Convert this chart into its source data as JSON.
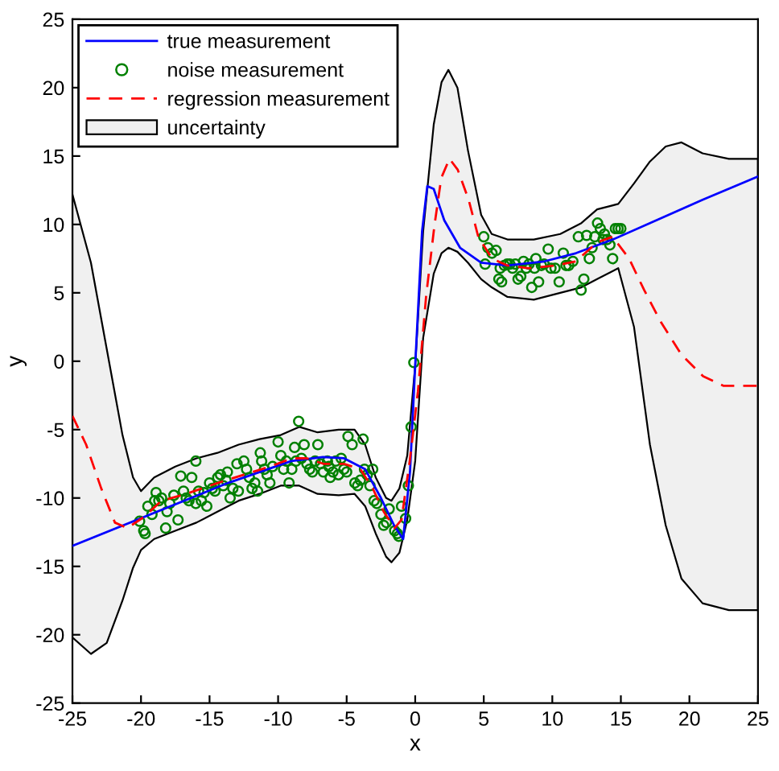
{
  "chart_data": {
    "type": "line",
    "xlabel": "x",
    "ylabel": "y",
    "xlim": [
      -25,
      25
    ],
    "ylim": [
      -25,
      25
    ],
    "xticks": [
      -25,
      -20,
      -15,
      -10,
      -5,
      0,
      5,
      10,
      15,
      20,
      25
    ],
    "yticks": [
      -25,
      -20,
      -15,
      -10,
      -5,
      0,
      5,
      10,
      15,
      20,
      25
    ],
    "grid": false,
    "legend": "top left",
    "series": [
      {
        "name": "uncertainty",
        "type": "line",
        "color": "#f0f0f0",
        "values": [
          null,
          null,
          null,
          null,
          null,
          null,
          null,
          null,
          null,
          null,
          null,
          null,
          null,
          null,
          null,
          null,
          null,
          null,
          null,
          null,
          null,
          null,
          null,
          null,
          null,
          null,
          null,
          null,
          null,
          null,
          null,
          null,
          null,
          null,
          null,
          null,
          null,
          null,
          null,
          null,
          null,
          null,
          null,
          null,
          null
        ],
        "x": [
          -25.0,
          -23.65,
          -22.5,
          -21.35,
          -20.58,
          -20.0,
          -19.04,
          -17.5,
          -15.96,
          -14.42,
          -12.88,
          -11.35,
          -9.81,
          -8.46,
          -7.12,
          -5.58,
          -4.42,
          -3.65,
          -2.88,
          -2.12,
          -1.73,
          -1.15,
          -0.58,
          0.0,
          0.58,
          1.35,
          1.92,
          2.42,
          3.08,
          3.85,
          4.81,
          5.58,
          6.73,
          8.65,
          10.58,
          12.12,
          13.27,
          14.81,
          15.96,
          17.12,
          18.27,
          19.42,
          20.96,
          22.88,
          25.0
        ],
        "upper": [
          12.2,
          7.2,
          0.9,
          -5.4,
          -8.5,
          -9.5,
          -8.5,
          -7.7,
          -7.1,
          -6.7,
          -6.1,
          -5.7,
          -5.4,
          -4.8,
          -5.2,
          -5.0,
          -5.0,
          -6.1,
          -8.5,
          -10.0,
          -10.2,
          -9.3,
          -6.9,
          -0.3,
          9.5,
          17.3,
          20.4,
          21.3,
          20.0,
          15.4,
          10.7,
          9.3,
          8.9,
          8.9,
          9.3,
          10.1,
          11.1,
          11.5,
          13.0,
          14.6,
          15.7,
          16.0,
          15.2,
          14.8,
          14.8
        ],
        "lower": [
          -20.2,
          -21.4,
          -20.6,
          -17.5,
          -15.1,
          -13.8,
          -13.0,
          -12.4,
          -11.8,
          -11.0,
          -10.2,
          -9.7,
          -9.1,
          -9.1,
          -9.7,
          -9.8,
          -9.7,
          -10.6,
          -12.6,
          -14.3,
          -14.7,
          -14.0,
          -11.6,
          -7.3,
          1.7,
          6.4,
          7.9,
          8.3,
          8.0,
          7.2,
          6.0,
          5.4,
          4.7,
          4.5,
          5.0,
          5.4,
          6.0,
          6.8,
          2.5,
          -6.1,
          -12.0,
          -15.9,
          -17.7,
          -18.2,
          -18.2
        ]
      },
      {
        "name": "true measurement",
        "color": "#0000ff",
        "line_style": "solid",
        "marker": "none",
        "x": [
          -25.0,
          -13.65,
          -9.04,
          -6.73,
          -5.19,
          -3.65,
          -2.5,
          -1.54,
          -0.88,
          -0.38,
          0.0,
          0.5,
          0.88,
          1.35,
          2.12,
          3.27,
          4.81,
          6.73,
          9.42,
          11.73,
          14.42,
          17.12,
          20.96,
          25.0
        ],
        "values": [
          -13.5,
          -8.9,
          -7.3,
          -7.0,
          -7.1,
          -7.9,
          -10.0,
          -12.0,
          -13.0,
          -8.1,
          -0.3,
          9.5,
          12.8,
          12.6,
          10.3,
          8.3,
          7.2,
          7.0,
          7.3,
          7.9,
          8.9,
          10.1,
          11.8,
          13.5
        ]
      },
      {
        "name": "noise measurement",
        "type": "scatter",
        "color": "#008000",
        "marker": "circle",
        "x": [
          -20.1,
          -19.8,
          -19.7,
          -19.5,
          -19.2,
          -19.0,
          -18.9,
          -18.7,
          -18.5,
          -18.2,
          -18.1,
          -17.9,
          -17.6,
          -17.3,
          -17.1,
          -16.9,
          -16.7,
          -16.5,
          -16.3,
          -16.0,
          -16.0,
          -15.8,
          -15.6,
          -15.4,
          -15.2,
          -15.0,
          -14.8,
          -14.6,
          -14.4,
          -14.2,
          -14.0,
          -13.8,
          -13.7,
          -13.5,
          -13.3,
          -13.0,
          -12.9,
          -12.5,
          -12.3,
          -12.1,
          -11.9,
          -11.7,
          -11.5,
          -11.3,
          -11.2,
          -11.0,
          -10.8,
          -10.6,
          -10.4,
          -10.0,
          -9.8,
          -9.6,
          -9.4,
          -9.2,
          -9.0,
          -8.8,
          -8.7,
          -8.5,
          -8.3,
          -8.1,
          -7.9,
          -7.7,
          -7.5,
          -7.3,
          -7.1,
          -6.9,
          -6.7,
          -6.4,
          -6.3,
          -6.2,
          -6.0,
          -5.8,
          -5.6,
          -5.4,
          -5.2,
          -5.0,
          -4.9,
          -4.6,
          -4.4,
          -4.2,
          -4.0,
          -3.8,
          -3.7,
          -3.5,
          -3.3,
          -3.1,
          -3.0,
          -2.8,
          -2.5,
          -2.3,
          -2.1,
          -1.9,
          -1.5,
          -1.3,
          -1.2,
          -1.0,
          -0.7,
          -0.5,
          -0.3,
          -0.1,
          5.0,
          5.1,
          5.3,
          5.6,
          5.9,
          6.1,
          6.2,
          6.3,
          6.5,
          6.7,
          6.9,
          7.1,
          7.3,
          7.5,
          7.7,
          7.9,
          8.1,
          8.3,
          8.5,
          8.7,
          8.8,
          9.0,
          9.2,
          9.4,
          9.7,
          9.9,
          10.2,
          10.5,
          10.8,
          11.0,
          11.2,
          11.5,
          11.9,
          12.1,
          12.3,
          12.5,
          12.7,
          12.9,
          13.1,
          13.3,
          13.5,
          13.7,
          13.8,
          14.0,
          14.2,
          14.4,
          14.6,
          14.8,
          15.0
        ],
        "values": [
          -11.7,
          -12.4,
          -12.6,
          -10.6,
          -11.2,
          -10.2,
          -9.6,
          -10.2,
          -10.0,
          -12.2,
          -11.0,
          -10.4,
          -9.8,
          -11.6,
          -8.4,
          -9.5,
          -10.0,
          -10.2,
          -8.5,
          -10.4,
          -7.3,
          -9.5,
          -10.2,
          -9.6,
          -10.6,
          -8.9,
          -9.3,
          -9.5,
          -8.5,
          -8.3,
          -9.1,
          -8.7,
          -8.1,
          -10.0,
          -9.3,
          -7.5,
          -9.5,
          -7.3,
          -7.9,
          -8.5,
          -9.3,
          -8.9,
          -9.5,
          -6.7,
          -7.3,
          -7.9,
          -8.3,
          -8.9,
          -7.7,
          -5.9,
          -6.9,
          -7.9,
          -7.3,
          -8.9,
          -7.9,
          -6.3,
          -7.3,
          -4.4,
          -7.1,
          -6.1,
          -7.5,
          -7.9,
          -8.1,
          -7.3,
          -6.1,
          -7.5,
          -8.1,
          -7.3,
          -7.7,
          -8.5,
          -8.1,
          -7.3,
          -8.3,
          -7.1,
          -7.9,
          -8.1,
          -5.5,
          -6.1,
          -8.9,
          -9.1,
          -8.7,
          -5.7,
          -7.9,
          -8.3,
          -9.1,
          -7.9,
          -10.2,
          -10.4,
          -11.2,
          -12.0,
          -11.8,
          -10.8,
          -12.4,
          -12.6,
          -12.8,
          -10.6,
          -11.5,
          -9.1,
          -4.8,
          -0.1,
          9.1,
          7.1,
          8.3,
          7.9,
          8.1,
          6.0,
          6.8,
          5.8,
          7.0,
          7.1,
          7.1,
          6.8,
          7.1,
          6.0,
          6.2,
          7.3,
          6.8,
          7.1,
          5.4,
          6.8,
          7.5,
          5.8,
          7.0,
          7.1,
          8.2,
          6.8,
          6.8,
          5.8,
          7.9,
          7.0,
          7.0,
          7.3,
          9.1,
          5.2,
          6.0,
          9.2,
          7.5,
          8.3,
          9.1,
          10.1,
          9.7,
          8.9,
          9.3,
          8.9,
          8.5,
          7.5,
          9.7,
          9.7,
          9.7
        ]
      },
      {
        "name": "regression measurement",
        "color": "#ff0000",
        "line_style": "dashed",
        "marker": "none",
        "x": [
          -25.0,
          -24.0,
          -22.9,
          -21.9,
          -21.0,
          -19.8,
          -18.5,
          -16.7,
          -14.4,
          -12.5,
          -10.6,
          -9.0,
          -7.9,
          -6.7,
          -5.2,
          -4.0,
          -3.1,
          -2.3,
          -1.5,
          -1.0,
          -0.4,
          0.2,
          0.8,
          1.4,
          1.9,
          2.5,
          3.1,
          3.9,
          4.6,
          5.6,
          6.7,
          8.3,
          10.2,
          11.7,
          13.3,
          14.4,
          15.6,
          16.7,
          17.9,
          19.4,
          21.0,
          22.5,
          25.0
        ],
        "values": [
          -4.0,
          -6.1,
          -9.3,
          -11.8,
          -12.2,
          -11.4,
          -10.2,
          -9.7,
          -8.9,
          -8.3,
          -7.7,
          -7.1,
          -7.1,
          -7.5,
          -7.5,
          -7.9,
          -9.3,
          -11.0,
          -12.2,
          -11.6,
          -7.3,
          -2.2,
          4.8,
          9.9,
          13.4,
          14.8,
          14.0,
          11.8,
          9.1,
          7.5,
          7.0,
          6.8,
          7.0,
          7.3,
          8.7,
          9.1,
          7.5,
          5.2,
          2.9,
          0.5,
          -1.1,
          -1.8,
          -1.8
        ]
      }
    ]
  }
}
